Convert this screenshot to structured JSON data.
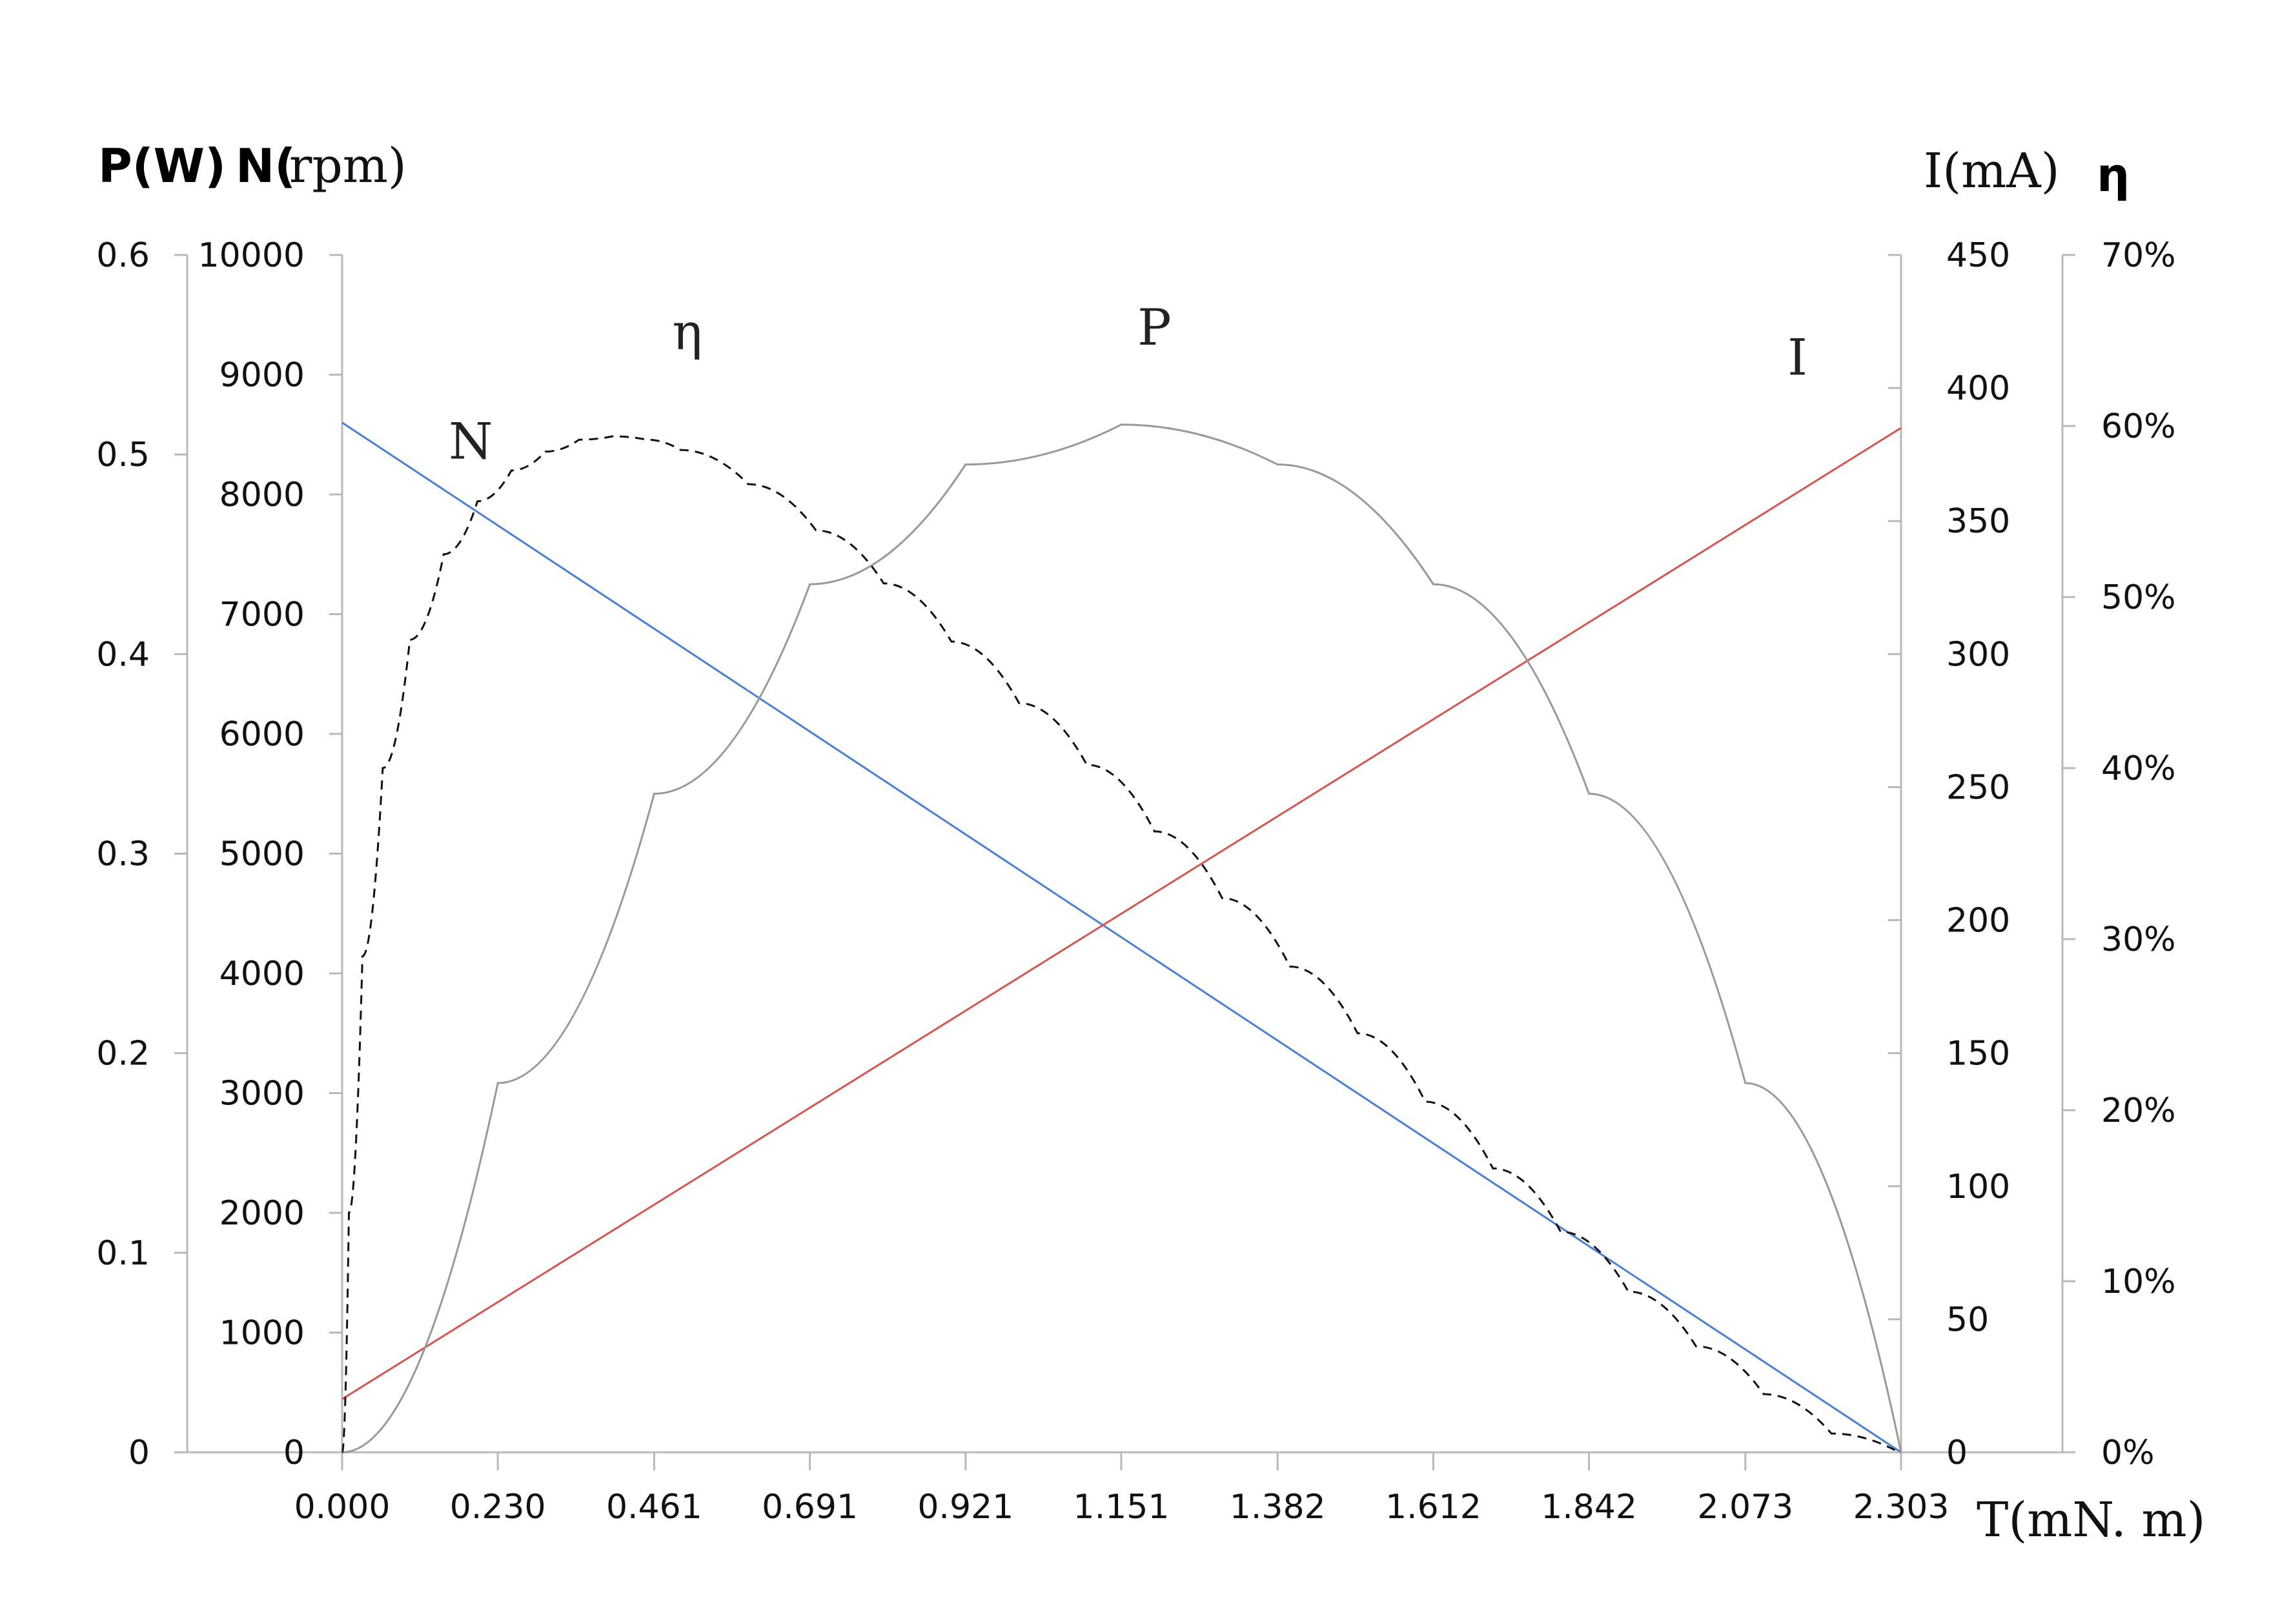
{
  "chart_data": {
    "type": "line",
    "title": "",
    "xlabel": "T(mN. m)",
    "axes": {
      "p": {
        "title": "P(W)",
        "range": [
          0,
          0.6
        ],
        "ticks": [
          "0",
          "0.1",
          "0.2",
          "0.3",
          "0.4",
          "0.5",
          "0.6"
        ]
      },
      "n": {
        "title_prefix": "N(",
        "title_unit": "rpm)",
        "range": [
          0,
          10000
        ],
        "ticks": [
          "0",
          "1000",
          "2000",
          "3000",
          "4000",
          "5000",
          "6000",
          "7000",
          "8000",
          "9000",
          "10000"
        ]
      },
      "i": {
        "title": "I(mA)",
        "range": [
          0,
          450
        ],
        "ticks": [
          "0",
          "50",
          "100",
          "150",
          "200",
          "250",
          "300",
          "350",
          "400",
          "450"
        ]
      },
      "eta": {
        "title": "η",
        "range": [
          0,
          70
        ],
        "ticks": [
          "0%",
          "10%",
          "20%",
          "30%",
          "40%",
          "50%",
          "60%",
          "70%"
        ]
      },
      "x": {
        "range": [
          0,
          2.303
        ],
        "ticks": [
          "0.000",
          "0.230",
          "0.461",
          "0.691",
          "0.921",
          "1.151",
          "1.382",
          "1.612",
          "1.842",
          "2.073",
          "2.303"
        ]
      }
    },
    "series": [
      {
        "name": "N",
        "axis": "n",
        "color": "#4a7fd4",
        "style": "solid",
        "x": [
          0.0,
          2.303
        ],
        "y": [
          8600,
          0
        ]
      },
      {
        "name": "I",
        "axis": "i",
        "color": "#d9534f",
        "style": "solid",
        "x": [
          0.0,
          2.303
        ],
        "y": [
          20,
          385
        ]
      },
      {
        "name": "P",
        "axis": "p",
        "color": "#999999",
        "style": "solid",
        "x": [
          0.0,
          0.23,
          0.461,
          0.691,
          0.921,
          1.151,
          1.382,
          1.612,
          1.842,
          2.073,
          2.303
        ],
        "y": [
          0.0,
          0.185,
          0.33,
          0.435,
          0.495,
          0.515,
          0.495,
          0.435,
          0.33,
          0.185,
          0.0
        ]
      },
      {
        "name": "η",
        "axis": "eta",
        "color": "#111111",
        "style": "dashed",
        "x": [
          0.0,
          0.01,
          0.03,
          0.06,
          0.1,
          0.15,
          0.2,
          0.25,
          0.3,
          0.35,
          0.4,
          0.45,
          0.5,
          0.6,
          0.7,
          0.8,
          0.9,
          1.0,
          1.1,
          1.2,
          1.3,
          1.4,
          1.5,
          1.6,
          1.7,
          1.8,
          1.9,
          2.0,
          2.1,
          2.2,
          2.3
        ],
        "y": [
          0,
          14,
          29,
          40,
          47.5,
          52.5,
          55.6,
          57.4,
          58.5,
          59.2,
          59.4,
          59.2,
          58.6,
          56.6,
          53.9,
          50.8,
          47.4,
          43.8,
          40.2,
          36.3,
          32.4,
          28.4,
          24.5,
          20.5,
          16.6,
          12.9,
          9.4,
          6.2,
          3.4,
          1.1,
          0
        ]
      }
    ],
    "labels": [
      {
        "text": "N",
        "series": "N",
        "x": 0.19,
        "y": 8300
      },
      {
        "text": "η",
        "series": "η",
        "x": 0.51,
        "y": 64.5
      },
      {
        "text": "P",
        "series": "P",
        "x": 1.2,
        "y": 0.555
      },
      {
        "text": "I",
        "series": "I",
        "x": 2.15,
        "y": 405
      }
    ]
  }
}
